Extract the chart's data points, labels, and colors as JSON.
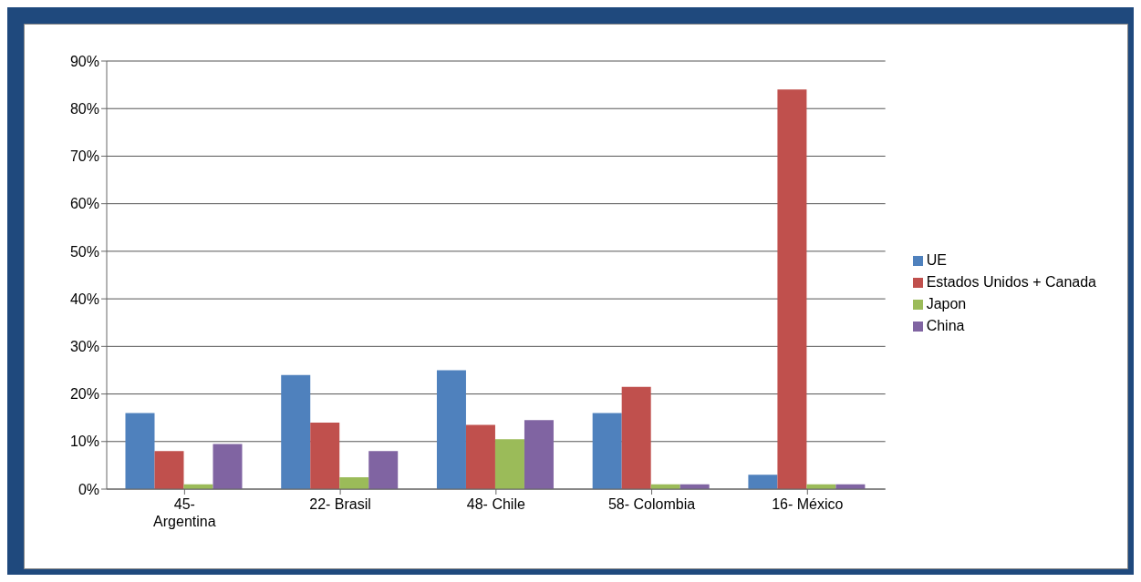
{
  "chart_data": {
    "type": "bar",
    "categories": [
      "45- Argentina",
      "22- Brasil",
      "48- Chile",
      "58- Colombia",
      "16- México"
    ],
    "series": [
      {
        "name": "UE",
        "color": "#4f81bd",
        "values": [
          16,
          24,
          25,
          16,
          3
        ]
      },
      {
        "name": "Estados Unidos + Canada",
        "color": "#c0504d",
        "values": [
          8,
          14,
          13.5,
          21.5,
          84
        ]
      },
      {
        "name": "Japon",
        "color": "#9bbb59",
        "values": [
          1,
          2.5,
          10.5,
          1,
          1
        ]
      },
      {
        "name": "China",
        "color": "#8064a2",
        "values": [
          9.5,
          8,
          14.5,
          1,
          1
        ]
      }
    ],
    "ylim": [
      0,
      90
    ],
    "yticks": [
      {
        "value": 0,
        "label": "0%"
      },
      {
        "value": 10,
        "label": "10%"
      },
      {
        "value": 20,
        "label": "20%"
      },
      {
        "value": 30,
        "label": "30%"
      },
      {
        "value": 40,
        "label": "40%"
      },
      {
        "value": 50,
        "label": "50%"
      },
      {
        "value": 60,
        "label": "60%"
      },
      {
        "value": 70,
        "label": "70%"
      },
      {
        "value": 80,
        "label": "80%"
      },
      {
        "value": 90,
        "label": "90%"
      }
    ],
    "grid": "y",
    "legend": "right"
  }
}
